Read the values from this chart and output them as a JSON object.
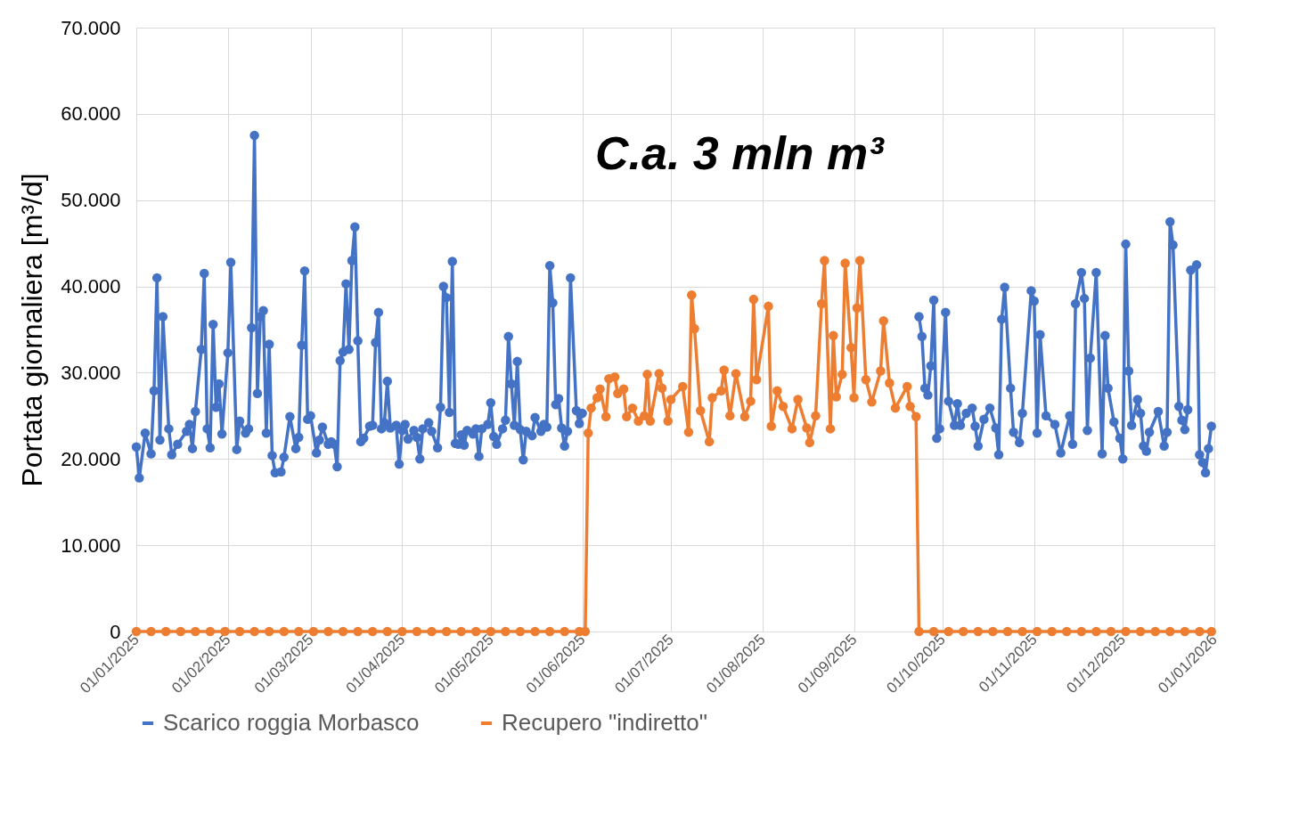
{
  "chart_data": {
    "type": "line",
    "ylabel": "Portata giornaliera [m³/d]",
    "annotations": [
      "C.a. 3 mln m³"
    ],
    "xlim": [
      "2025-01-01",
      "2026-01-01"
    ],
    "xticks": [
      {
        "value": "2025-01-01",
        "label": "01/01/2025"
      },
      {
        "value": "2025-02-01",
        "label": "01/02/2025"
      },
      {
        "value": "2025-03-01",
        "label": "01/03/2025"
      },
      {
        "value": "2025-04-01",
        "label": "01/04/2025"
      },
      {
        "value": "2025-05-01",
        "label": "01/05/2025"
      },
      {
        "value": "2025-06-01",
        "label": "01/06/2025"
      },
      {
        "value": "2025-07-01",
        "label": "01/07/2025"
      },
      {
        "value": "2025-08-01",
        "label": "01/08/2025"
      },
      {
        "value": "2025-09-01",
        "label": "01/09/2025"
      },
      {
        "value": "2025-10-01",
        "label": "01/10/2025"
      },
      {
        "value": "2025-11-01",
        "label": "01/11/2025"
      },
      {
        "value": "2025-12-01",
        "label": "01/12/2025"
      },
      {
        "value": "2026-01-01",
        "label": "01/01/2026"
      }
    ],
    "ylim": [
      0,
      70000
    ],
    "yticks": [
      0,
      {
        "value": 10000,
        "label": "10.000"
      },
      {
        "value": 20000,
        "label": "20.000"
      },
      {
        "value": 30000,
        "label": "30.000"
      },
      {
        "value": 40000,
        "label": "40.000"
      },
      {
        "value": 50000,
        "label": "50.000"
      },
      {
        "value": 60000,
        "label": "60.000"
      },
      {
        "value": 70000,
        "label": "70.000"
      }
    ],
    "grid": true,
    "legend": "bottom",
    "marker": "circle",
    "line_style": "solid",
    "series": [
      {
        "name": "Scarico roggia Morbasco",
        "color": "#4472c4",
        "x": [
          "2025-01-01",
          "2025-01-02",
          "2025-01-04",
          "2025-01-06",
          "2025-01-07",
          "2025-01-08",
          "2025-01-09",
          "2025-01-10",
          "2025-01-12",
          "2025-01-13",
          "2025-01-15",
          "2025-01-18",
          "2025-01-19",
          "2025-01-20",
          "2025-01-21",
          "2025-01-23",
          "2025-01-24",
          "2025-01-25",
          "2025-01-26",
          "2025-01-27",
          "2025-01-28",
          "2025-01-29",
          "2025-01-30",
          "2025-02-01",
          "2025-02-02",
          "2025-02-04",
          "2025-02-05",
          "2025-02-07",
          "2025-02-08",
          "2025-02-09",
          "2025-02-10",
          "2025-02-11",
          "2025-02-12",
          "2025-02-13",
          "2025-02-14",
          "2025-02-15",
          "2025-02-16",
          "2025-02-17",
          "2025-02-19",
          "2025-02-20",
          "2025-02-22",
          "2025-02-24",
          "2025-02-25",
          "2025-02-26",
          "2025-02-27",
          "2025-02-28",
          "2025-03-01",
          "2025-03-03",
          "2025-03-04",
          "2025-03-05",
          "2025-03-07",
          "2025-03-08",
          "2025-03-09",
          "2025-03-10",
          "2025-03-11",
          "2025-03-12",
          "2025-03-13",
          "2025-03-14",
          "2025-03-15",
          "2025-03-16",
          "2025-03-17",
          "2025-03-18",
          "2025-03-19",
          "2025-03-21",
          "2025-03-22",
          "2025-03-23",
          "2025-03-24",
          "2025-03-25",
          "2025-03-26",
          "2025-03-27",
          "2025-03-28",
          "2025-03-30",
          "2025-03-31",
          "2025-04-01",
          "2025-04-02",
          "2025-04-03",
          "2025-04-05",
          "2025-04-06",
          "2025-04-07",
          "2025-04-08",
          "2025-04-10",
          "2025-04-11",
          "2025-04-13",
          "2025-04-14",
          "2025-04-15",
          "2025-04-16",
          "2025-04-17",
          "2025-04-18",
          "2025-04-19",
          "2025-04-20",
          "2025-04-21",
          "2025-04-22",
          "2025-04-23",
          "2025-04-25",
          "2025-04-26",
          "2025-04-27",
          "2025-04-28",
          "2025-04-30",
          "2025-05-01",
          "2025-05-02",
          "2025-05-03",
          "2025-05-05",
          "2025-05-06",
          "2025-05-07",
          "2025-05-08",
          "2025-05-09",
          "2025-05-10",
          "2025-05-11",
          "2025-05-12",
          "2025-05-13",
          "2025-05-15",
          "2025-05-16",
          "2025-05-18",
          "2025-05-19",
          "2025-05-20",
          "2025-05-21",
          "2025-05-22",
          "2025-05-23",
          "2025-05-24",
          "2025-05-25",
          "2025-05-26",
          "2025-05-27",
          "2025-05-28",
          "2025-05-30",
          "2025-05-31",
          "2025-06-01",
          "2025-07-15",
          "2025-09-23",
          "2025-09-24",
          "2025-09-25",
          "2025-09-26",
          "2025-09-27",
          "2025-09-28",
          "2025-09-29",
          "2025-09-30",
          "2025-10-02",
          "2025-10-03",
          "2025-10-05",
          "2025-10-06",
          "2025-10-07",
          "2025-10-09",
          "2025-10-11",
          "2025-10-12",
          "2025-10-13",
          "2025-10-15",
          "2025-10-17",
          "2025-10-19",
          "2025-10-20",
          "2025-10-21",
          "2025-10-22",
          "2025-10-24",
          "2025-10-25",
          "2025-10-27",
          "2025-10-28",
          "2025-10-31",
          "2025-11-01",
          "2025-11-02",
          "2025-11-03",
          "2025-11-05",
          "2025-11-08",
          "2025-11-10",
          "2025-11-13",
          "2025-11-14",
          "2025-11-15",
          "2025-11-17",
          "2025-11-18",
          "2025-11-19",
          "2025-11-20",
          "2025-11-22",
          "2025-11-24",
          "2025-11-25",
          "2025-11-26",
          "2025-11-28",
          "2025-11-30",
          "2025-12-01",
          "2025-12-02",
          "2025-12-03",
          "2025-12-04",
          "2025-12-06",
          "2025-12-07",
          "2025-12-08",
          "2025-12-09",
          "2025-12-10",
          "2025-12-13",
          "2025-12-15",
          "2025-12-16",
          "2025-12-17",
          "2025-12-18",
          "2025-12-20",
          "2025-12-21",
          "2025-12-22",
          "2025-12-23",
          "2025-12-24",
          "2025-12-26",
          "2025-12-27",
          "2025-12-28",
          "2025-12-29",
          "2025-12-30",
          "2025-12-31"
        ],
        "values": [
          21400,
          17800,
          23000,
          20600,
          27900,
          41000,
          22200,
          36500,
          23500,
          20500,
          21700,
          23200,
          24000,
          21200,
          25500,
          32700,
          41500,
          23500,
          21300,
          35600,
          26000,
          28700,
          22900,
          32300,
          42800,
          21100,
          24400,
          23000,
          23500,
          35200,
          57500,
          27600,
          36500,
          37200,
          23000,
          33300,
          20400,
          18400,
          18500,
          20200,
          24900,
          21200,
          22500,
          33200,
          41800,
          24600,
          25000,
          20700,
          22200,
          23700,
          21700,
          22000,
          21700,
          19100,
          31400,
          32400,
          40300,
          32700,
          43000,
          46900,
          33700,
          22000,
          22400,
          23800,
          23900,
          33500,
          37000,
          23500,
          24200,
          29000,
          23600,
          23900,
          19400,
          23300,
          24000,
          22300,
          23300,
          22500,
          20000,
          23500,
          24200,
          23200,
          21300,
          26000,
          40000,
          38700,
          25400,
          42900,
          21800,
          21700,
          22800,
          21600,
          23300,
          22900,
          23500,
          20300,
          23500,
          24000,
          26500,
          22600,
          21700,
          23500,
          24500,
          34200,
          28700,
          23900,
          31300,
          23400,
          19900,
          23200,
          22700,
          24800,
          23200,
          24000,
          23700,
          42400,
          38100,
          26300,
          27000,
          23600,
          21500,
          23200,
          41000,
          25600,
          24100,
          25300,
          null,
          36500,
          34200,
          28200,
          27400,
          30800,
          38400,
          22400,
          23500,
          37000,
          26700,
          23900,
          26400,
          23900,
          25300,
          25900,
          23800,
          21500,
          24600,
          25900,
          23600,
          20500,
          36200,
          39900,
          28200,
          23100,
          21900,
          25300,
          39500,
          38300,
          23000,
          34400,
          25000,
          24000,
          20700,
          25000,
          21700,
          38000,
          41600,
          38600,
          23300,
          31700,
          41600,
          20600,
          34300,
          28200,
          24300,
          22400,
          20000,
          44900,
          30200,
          23900,
          26900,
          25300,
          21500,
          20900,
          23100,
          25500,
          21500,
          23100,
          47500,
          44800,
          26100,
          24500,
          23400,
          25700,
          41900,
          42500,
          20500,
          19600,
          18400,
          21200,
          23800
        ]
      },
      {
        "name": "Recupero \"indiretto\"",
        "color": "#ed7d31",
        "x": [
          "2025-01-01",
          "2025-01-06",
          "2025-01-11",
          "2025-01-16",
          "2025-01-21",
          "2025-01-26",
          "2025-01-31",
          "2025-02-05",
          "2025-02-10",
          "2025-02-15",
          "2025-02-20",
          "2025-02-25",
          "2025-03-02",
          "2025-03-07",
          "2025-03-12",
          "2025-03-17",
          "2025-03-22",
          "2025-03-27",
          "2025-04-01",
          "2025-04-06",
          "2025-04-11",
          "2025-04-16",
          "2025-04-21",
          "2025-04-26",
          "2025-05-01",
          "2025-05-06",
          "2025-05-11",
          "2025-05-16",
          "2025-05-21",
          "2025-05-26",
          "2025-05-31",
          "2025-06-02",
          "2025-06-03",
          "2025-06-04",
          "2025-06-06",
          "2025-06-07",
          "2025-06-09",
          "2025-06-10",
          "2025-06-12",
          "2025-06-13",
          "2025-06-15",
          "2025-06-16",
          "2025-06-18",
          "2025-06-20",
          "2025-06-22",
          "2025-06-23",
          "2025-06-24",
          "2025-06-27",
          "2025-06-28",
          "2025-06-30",
          "2025-07-01",
          "2025-07-05",
          "2025-07-07",
          "2025-07-08",
          "2025-07-09",
          "2025-07-11",
          "2025-07-14",
          "2025-07-15",
          "2025-07-18",
          "2025-07-19",
          "2025-07-21",
          "2025-07-23",
          "2025-07-26",
          "2025-07-28",
          "2025-07-29",
          "2025-07-30",
          "2025-08-03",
          "2025-08-04",
          "2025-08-06",
          "2025-08-08",
          "2025-08-11",
          "2025-08-13",
          "2025-08-16",
          "2025-08-17",
          "2025-08-19",
          "2025-08-21",
          "2025-08-22",
          "2025-08-24",
          "2025-08-25",
          "2025-08-26",
          "2025-08-28",
          "2025-08-29",
          "2025-08-31",
          "2025-09-01",
          "2025-09-02",
          "2025-09-03",
          "2025-09-05",
          "2025-09-07",
          "2025-09-10",
          "2025-09-11",
          "2025-09-13",
          "2025-09-15",
          "2025-09-19",
          "2025-09-20",
          "2025-09-22",
          "2025-09-23",
          "2025-09-28",
          "2025-10-03",
          "2025-10-08",
          "2025-10-13",
          "2025-10-18",
          "2025-10-23",
          "2025-10-28",
          "2025-11-02",
          "2025-11-07",
          "2025-11-12",
          "2025-11-17",
          "2025-11-22",
          "2025-11-27",
          "2025-12-02",
          "2025-12-07",
          "2025-12-12",
          "2025-12-17",
          "2025-12-22",
          "2025-12-27",
          "2025-12-31"
        ],
        "values": [
          0,
          0,
          0,
          0,
          0,
          0,
          0,
          0,
          0,
          0,
          0,
          0,
          0,
          0,
          0,
          0,
          0,
          0,
          0,
          0,
          0,
          0,
          0,
          0,
          0,
          0,
          0,
          0,
          0,
          0,
          0,
          0,
          23000,
          25900,
          27100,
          28100,
          24900,
          29300,
          29500,
          27600,
          28100,
          24900,
          25900,
          24400,
          25000,
          29800,
          24400,
          29900,
          28200,
          24400,
          26900,
          28400,
          23100,
          39000,
          35100,
          25600,
          22000,
          27100,
          27900,
          30300,
          25000,
          29900,
          24900,
          26700,
          38500,
          29200,
          37700,
          23800,
          27900,
          26100,
          23500,
          26900,
          23600,
          21900,
          25000,
          38000,
          43000,
          23500,
          34300,
          27200,
          29800,
          42700,
          32900,
          27100,
          37500,
          43000,
          29200,
          26600,
          30200,
          36000,
          28800,
          25900,
          28400,
          26100,
          24900,
          0,
          0,
          0,
          0,
          0,
          0,
          0,
          0,
          0,
          0,
          0,
          0,
          0,
          0,
          0,
          0,
          0,
          0,
          0,
          0,
          0
        ]
      }
    ]
  }
}
